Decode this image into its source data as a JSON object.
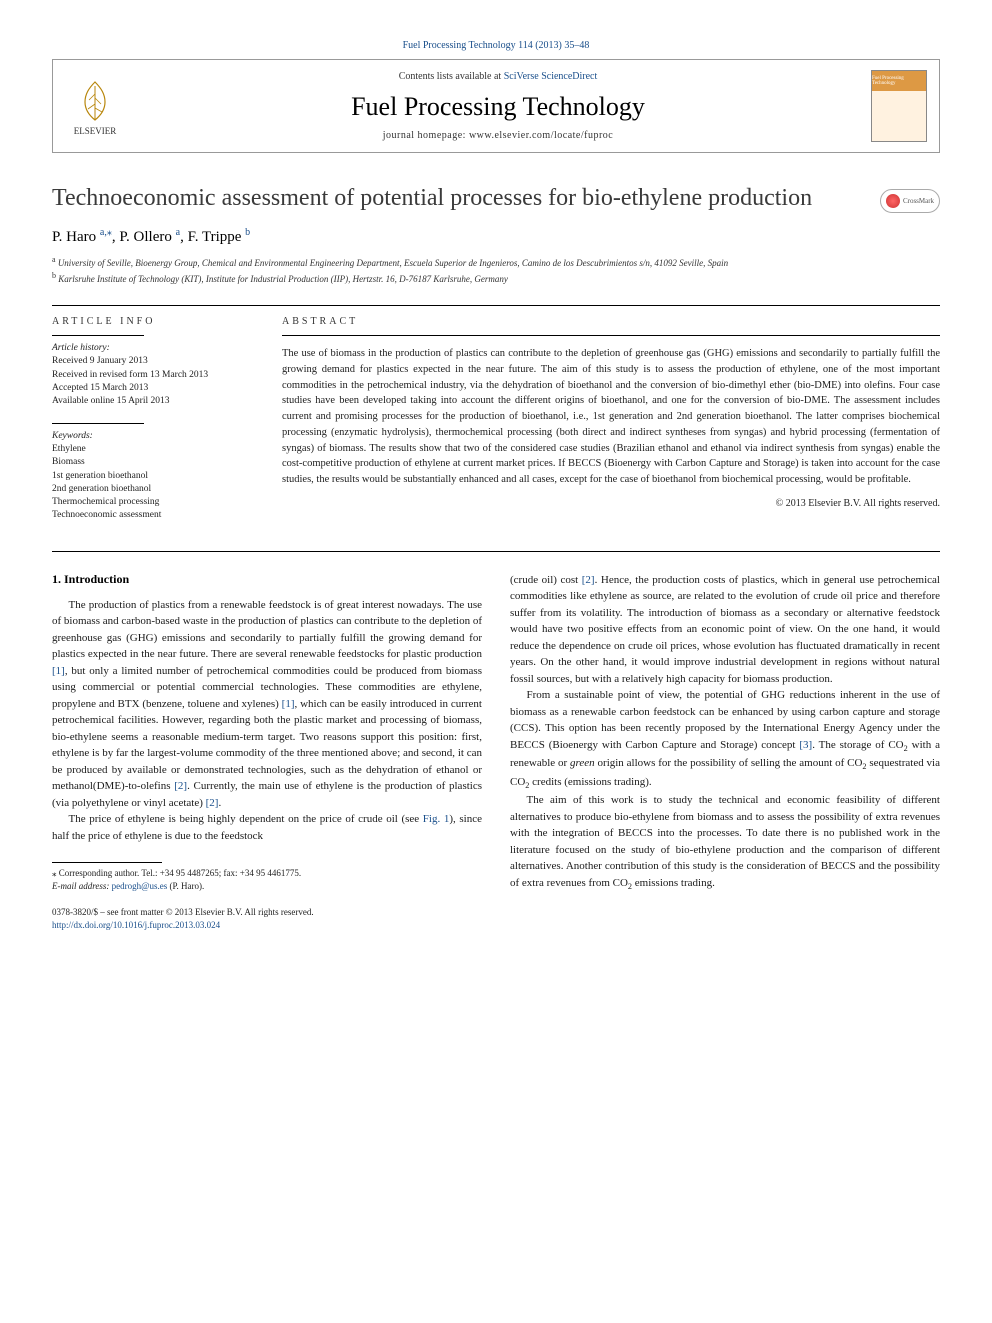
{
  "top_link": "Fuel Processing Technology 114 (2013) 35–48",
  "header": {
    "publisher_name": "ELSEVIER",
    "contents_prefix": "Contents lists available at ",
    "contents_link": "SciVerse ScienceDirect",
    "journal_name": "Fuel Processing Technology",
    "homepage_label": "journal homepage: ",
    "homepage_url": "www.elsevier.com/locate/fuproc",
    "cover_badge": "Fuel Processing Technology"
  },
  "crossmark_label": "CrossMark",
  "title": "Technoeconomic assessment of potential processes for bio-ethylene production",
  "authors": [
    {
      "name": "P. Haro",
      "sup": "a,",
      "star": "⁎"
    },
    {
      "name": "P. Ollero",
      "sup": "a",
      "star": ""
    },
    {
      "name": "F. Trippe",
      "sup": "b",
      "star": ""
    }
  ],
  "affiliations": {
    "a": "University of Seville, Bioenergy Group, Chemical and Environmental Engineering Department, Escuela Superior de Ingenieros, Camino de los Descubrimientos s/n, 41092 Seville, Spain",
    "b": "Karlsruhe Institute of Technology (KIT), Institute for Industrial Production (IIP), Hertzstr. 16, D-76187 Karlsruhe, Germany"
  },
  "info": {
    "heading": "article info",
    "history_label": "Article history:",
    "history": [
      "Received 9 January 2013",
      "Received in revised form 13 March 2013",
      "Accepted 15 March 2013",
      "Available online 15 April 2013"
    ],
    "keywords_label": "Keywords:",
    "keywords": [
      "Ethylene",
      "Biomass",
      "1st generation bioethanol",
      "2nd generation bioethanol",
      "Thermochemical processing",
      "Technoeconomic assessment"
    ]
  },
  "abstract": {
    "heading": "abstract",
    "text": "The use of biomass in the production of plastics can contribute to the depletion of greenhouse gas (GHG) emissions and secondarily to partially fulfill the growing demand for plastics expected in the near future. The aim of this study is to assess the production of ethylene, one of the most important commodities in the petrochemical industry, via the dehydration of bioethanol and the conversion of bio-dimethyl ether (bio-DME) into olefins. Four case studies have been developed taking into account the different origins of bioethanol, and one for the conversion of bio-DME. The assessment includes current and promising processes for the production of bioethanol, i.e., 1st generation and 2nd generation bioethanol. The latter comprises biochemical processing (enzymatic hydrolysis), thermochemical processing (both direct and indirect syntheses from syngas) and hybrid processing (fermentation of syngas) of biomass. The results show that two of the considered case studies (Brazilian ethanol and ethanol via indirect synthesis from syngas) enable the cost-competitive production of ethylene at current market prices. If BECCS (Bioenergy with Carbon Capture and Storage) is taken into account for the case studies, the results would be substantially enhanced and all cases, except for the case of bioethanol from biochemical processing, would be profitable.",
    "copyright": "© 2013 Elsevier B.V. All rights reserved."
  },
  "body": {
    "section_heading": "1. Introduction",
    "left_paras": [
      "The production of plastics from a renewable feedstock is of great interest nowadays. The use of biomass and carbon-based waste in the production of plastics can contribute to the depletion of greenhouse gas (GHG) emissions and secondarily to partially fulfill the growing demand for plastics expected in the near future. There are several renewable feedstocks for plastic production [1], but only a limited number of petrochemical commodities could be produced from biomass using commercial or potential commercial technologies. These commodities are ethylene, propylene and BTX (benzene, toluene and xylenes) [1], which can be easily introduced in current petrochemical facilities. However, regarding both the plastic market and processing of biomass, bio-ethylene seems a reasonable medium-term target. Two reasons support this position: first, ethylene is by far the largest-volume commodity of the three mentioned above; and second, it can be produced by available or demonstrated technologies, such as the dehydration of ethanol or methanol(DME)-to-olefins [2]. Currently, the main use of ethylene is the production of plastics (via polyethylene or vinyl acetate) [2].",
      "The price of ethylene is being highly dependent on the price of crude oil (see Fig. 1), since half the price of ethylene is due to the feedstock"
    ],
    "right_paras": [
      "(crude oil) cost [2]. Hence, the production costs of plastics, which in general use petrochemical commodities like ethylene as source, are related to the evolution of crude oil price and therefore suffer from its volatility. The introduction of biomass as a secondary or alternative feedstock would have two positive effects from an economic point of view. On the one hand, it would reduce the dependence on crude oil prices, whose evolution has fluctuated dramatically in recent years. On the other hand, it would improve industrial development in regions without natural fossil sources, but with a relatively high capacity for biomass production.",
      "From a sustainable point of view, the potential of GHG reductions inherent in the use of biomass as a renewable carbon feedstock can be enhanced by using carbon capture and storage (CCS). This option has been recently proposed by the International Energy Agency under the BECCS (Bioenergy with Carbon Capture and Storage) concept [3]. The storage of CO₂ with a renewable or green origin allows for the possibility of selling the amount of CO₂ sequestrated via CO₂ credits (emissions trading).",
      "The aim of this work is to study the technical and economic feasibility of different alternatives to produce bio-ethylene from biomass and to assess the possibility of extra revenues with the integration of BECCS into the processes. To date there is no published work in the literature focused on the study of bio-ethylene production and the comparison of different alternatives. Another contribution of this study is the consideration of BECCS and the possibility of extra revenues from CO₂ emissions trading."
    ]
  },
  "footnote": {
    "corr_label": "⁎ Corresponding author. Tel.: +34 95 4487265; fax: +34 95 4461775.",
    "email_label": "E-mail address: ",
    "email": "pedrogh@us.es",
    "email_author": " (P. Haro)."
  },
  "footer": {
    "line1": "0378-3820/$ – see front matter © 2013 Elsevier B.V. All rights reserved.",
    "doi": "http://dx.doi.org/10.1016/j.fuproc.2013.03.024"
  },
  "colors": {
    "link": "#1a4f8b",
    "text": "#1a1a1a",
    "rule": "#000000"
  }
}
